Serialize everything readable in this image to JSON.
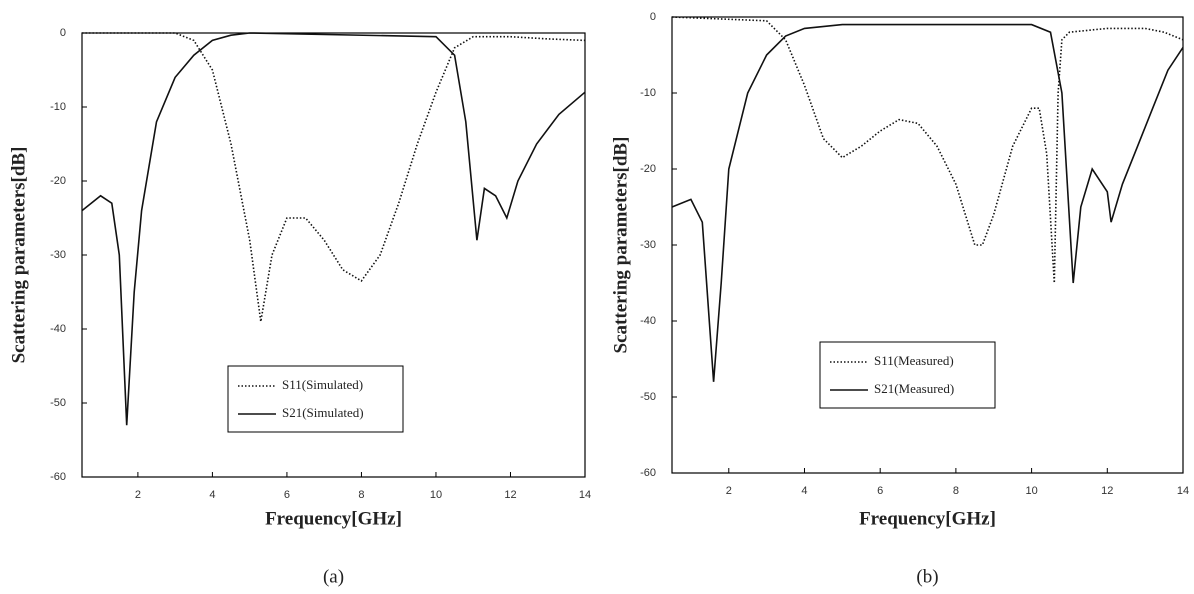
{
  "chart_data": [
    {
      "type": "line",
      "caption": "(a)",
      "x_label": "Frequency[GHz]",
      "y_label": "Scattering parameters[dB]",
      "xlim": [
        0.5,
        14
      ],
      "xticks": [
        2,
        4,
        6,
        8,
        10,
        12,
        14
      ],
      "ylim": [
        -60,
        0
      ],
      "yticks": [
        0,
        -10,
        -20,
        -30,
        -40,
        -50,
        -60
      ],
      "series": [
        {
          "name": "S11(Simulated)",
          "color": "#111111",
          "style": "dotted",
          "x": [
            0.5,
            3,
            3.5,
            4,
            4.5,
            5,
            5.3,
            5.6,
            6,
            6.5,
            7,
            7.5,
            8,
            8.5,
            9,
            9.5,
            10,
            10.5,
            11,
            12,
            13,
            14
          ],
          "values": [
            0,
            0,
            -1,
            -5,
            -15,
            -28,
            -39,
            -30,
            -25,
            -25,
            -28,
            -32,
            -33.5,
            -30,
            -23,
            -15,
            -8,
            -2,
            -0.5,
            -0.5,
            -0.8,
            -1
          ]
        },
        {
          "name": "S21(Simulated)",
          "color": "#111111",
          "style": "solid",
          "x": [
            0.5,
            1,
            1.3,
            1.5,
            1.7,
            1.9,
            2.1,
            2.5,
            3,
            3.5,
            4,
            4.5,
            5,
            10,
            10.5,
            10.8,
            11.1,
            11.3,
            11.6,
            11.9,
            12.2,
            12.7,
            13.3,
            14
          ],
          "values": [
            -24,
            -22,
            -23,
            -30,
            -53,
            -35,
            -24,
            -12,
            -6,
            -3,
            -1,
            -0.3,
            0,
            -0.5,
            -3,
            -12,
            -28,
            -21,
            -22,
            -25,
            -20,
            -15,
            -11,
            -8
          ]
        }
      ]
    },
    {
      "type": "line",
      "caption": "(b)",
      "x_label": "Frequency[GHz]",
      "y_label": "Scattering parameters[dB]",
      "xlim": [
        0.5,
        14
      ],
      "xticks": [
        2,
        4,
        6,
        8,
        10,
        12,
        14
      ],
      "ylim": [
        -60,
        0
      ],
      "yticks": [
        0,
        -10,
        -20,
        -30,
        -40,
        -50,
        -60
      ],
      "series": [
        {
          "name": "S11(Measured)",
          "color": "#111111",
          "style": "dotted",
          "x": [
            0.5,
            3,
            3.5,
            4,
            4.5,
            5,
            5.5,
            6,
            6.5,
            7,
            7.5,
            8,
            8.5,
            8.7,
            9,
            9.5,
            10,
            10.2,
            10.4,
            10.6,
            10.7,
            10.8,
            11,
            12,
            13,
            13.5,
            14
          ],
          "values": [
            0,
            -0.5,
            -3,
            -9,
            -16,
            -18.5,
            -17,
            -15,
            -13.5,
            -14,
            -17,
            -22,
            -30,
            -30,
            -26,
            -17,
            -12,
            -12,
            -18,
            -35,
            -10,
            -3,
            -2,
            -1.5,
            -1.5,
            -2,
            -3
          ]
        },
        {
          "name": "S21(Measured)",
          "color": "#111111",
          "style": "solid",
          "x": [
            0.5,
            1,
            1.3,
            1.6,
            1.8,
            2,
            2.5,
            3,
            3.5,
            4,
            5,
            10,
            10.5,
            10.8,
            11.1,
            11.3,
            11.6,
            12,
            12.1,
            12.4,
            12.8,
            13.2,
            13.6,
            14
          ],
          "values": [
            -25,
            -24,
            -27,
            -48,
            -35,
            -20,
            -10,
            -5,
            -2.5,
            -1.5,
            -1,
            -1,
            -2,
            -10,
            -35,
            -25,
            -20,
            -23,
            -27,
            -22,
            -17,
            -12,
            -7,
            -4
          ]
        }
      ]
    }
  ]
}
